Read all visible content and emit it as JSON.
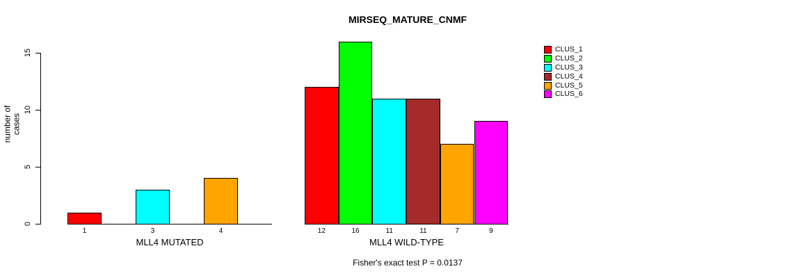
{
  "title": "MIRSEQ_MATURE_CNMF",
  "y_axis": {
    "label": "number of cases",
    "ticks": [
      "0",
      "5",
      "10",
      "15"
    ]
  },
  "footnote": "Fisher's exact test P = 0.0137",
  "chart_data": {
    "type": "bar",
    "title": "MIRSEQ_MATURE_CNMF",
    "ylabel": "number of cases",
    "ylim": [
      0,
      16
    ],
    "y_ticks": [
      0,
      5,
      10,
      15
    ],
    "grid": false,
    "legend_position": "right",
    "clusters": [
      "CLUS_1",
      "CLUS_2",
      "CLUS_3",
      "CLUS_4",
      "CLUS_5",
      "CLUS_6"
    ],
    "colors": [
      "#FF0000",
      "#00FF00",
      "#00FFFF",
      "#A52A2A",
      "#FFA500",
      "#FF00FF"
    ],
    "groups": [
      {
        "label": "MLL4 MUTATED",
        "values": [
          1,
          0,
          3,
          0,
          4,
          0
        ],
        "bar_labels": [
          "1",
          "",
          "3",
          "",
          "4",
          ""
        ]
      },
      {
        "label": "MLL4 WILD-TYPE",
        "values": [
          12,
          16,
          11,
          11,
          7,
          9
        ],
        "bar_labels": [
          "12",
          "16",
          "11",
          "11",
          "7",
          "9"
        ]
      }
    ],
    "annotation": "Fisher's exact test P = 0.0137"
  }
}
